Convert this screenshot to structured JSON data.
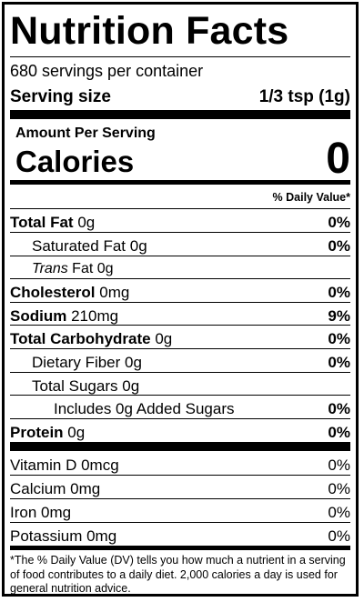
{
  "title": "Nutrition Facts",
  "servings_per_container": "680 servings per container",
  "serving_size": {
    "label": "Serving size",
    "value": "1/3 tsp (1g)"
  },
  "amount_per_serving": "Amount Per Serving",
  "calories": {
    "label": "Calories",
    "value": "0"
  },
  "daily_value_header": "% Daily Value*",
  "nutrients": [
    {
      "name": "Total Fat",
      "amount": "0g",
      "dv": "0%"
    },
    {
      "name": "Saturated Fat",
      "amount": "0g",
      "dv": "0%"
    },
    {
      "name": "Trans",
      "amount": "Fat 0g",
      "dv": ""
    },
    {
      "name": "Cholesterol",
      "amount": "0mg",
      "dv": "0%"
    },
    {
      "name": "Sodium",
      "amount": "210mg",
      "dv": "9%"
    },
    {
      "name": "Total Carbohydrate",
      "amount": "0g",
      "dv": "0%"
    },
    {
      "name": "Dietary Fiber",
      "amount": "0g",
      "dv": "0%"
    },
    {
      "name": "Total Sugars",
      "amount": "0g",
      "dv": ""
    },
    {
      "name": "Includes 0g Added Sugars",
      "amount": "",
      "dv": "0%"
    },
    {
      "name": "Protein",
      "amount": "0g",
      "dv": "0%"
    }
  ],
  "vitamins": [
    {
      "name": "Vitamin D 0mcg",
      "dv": "0%"
    },
    {
      "name": "Calcium 0mg",
      "dv": "0%"
    },
    {
      "name": "Iron 0mg",
      "dv": "0%"
    },
    {
      "name": "Potassium 0mg",
      "dv": "0%"
    }
  ],
  "footnote": "*The % Daily Value (DV) tells you how much a nutrient in a serving of food contributes to a daily diet. 2,000 calories a day is used for general nutrition advice."
}
